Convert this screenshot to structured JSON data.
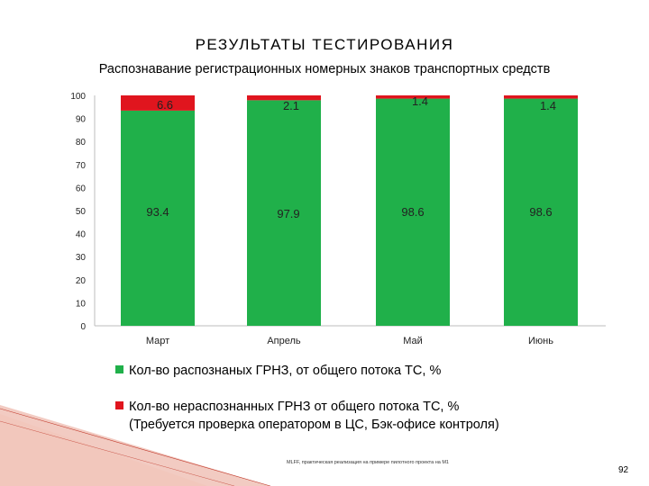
{
  "title": "РЕЗУЛЬТАТЫ ТЕСТИРОВАНИЯ",
  "subtitle": "Распознавание регистрационных номерных знаков транспортных средств",
  "colors": {
    "recognized": "#20b04a",
    "unrecognized": "#e0151e",
    "decor": "#e8a090"
  },
  "chart_data": {
    "type": "bar",
    "stacked": true,
    "categories": [
      "Март",
      "Апрель",
      "Май",
      "Июнь"
    ],
    "series": [
      {
        "name": "Кол-во распознаных ГРНЗ, от общего потока ТС, %",
        "values": [
          93.4,
          97.9,
          98.6,
          98.6
        ],
        "labels": [
          "93.4",
          "97.9",
          "98.6",
          "98.6"
        ]
      },
      {
        "name": "Кол-во нераспознанных ГРНЗ от общего потока ТС, %",
        "values": [
          6.6,
          2.1,
          1.4,
          1.4
        ],
        "labels": [
          "6.6",
          "2.1",
          "1.4",
          "1.4"
        ]
      }
    ],
    "yticks": [
      "0",
      "10",
      "20",
      "30",
      "40",
      "50",
      "60",
      "70",
      "80",
      "90",
      "100"
    ],
    "ylim": [
      0,
      100
    ],
    "grid": false,
    "legend_position": "bottom"
  },
  "legend": {
    "item1": "Кол-во  распознаных ГРНЗ, от общего потока ТС, %",
    "item2_line1": "Кол-во нераспознанных ГРНЗ от общего потока ТС, %",
    "item2_line2": "(Требуется проверка оператором в ЦС, Бэк-офисе контроля)"
  },
  "footnote": "MLFF, практическая реализация на примере пилотного проекта на М1",
  "page_number": "92"
}
